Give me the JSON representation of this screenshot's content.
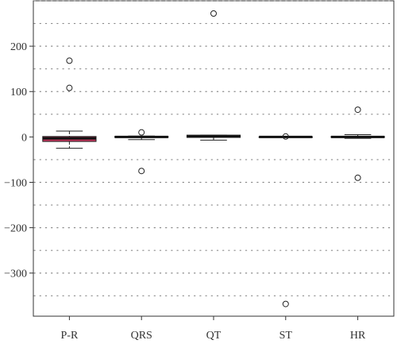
{
  "chart_data": {
    "type": "box",
    "title": "",
    "xlabel": "",
    "ylabel": "",
    "ylim": [
      -395,
      300
    ],
    "yticks": [
      -300,
      -200,
      -100,
      0,
      100,
      200
    ],
    "grid": true,
    "grid_step": 50,
    "legend": "none",
    "categories": [
      "P-R",
      "QRS",
      "QT",
      "ST",
      "HR"
    ],
    "boxes": [
      {
        "name": "P-R",
        "whisker_low": -25,
        "q1": -10,
        "median": -3,
        "q3": 1,
        "whisker_high": 13,
        "outliers": [
          168,
          108
        ],
        "color": "#c0345a"
      },
      {
        "name": "QRS",
        "whisker_low": -6,
        "q1": -1,
        "median": 0,
        "q3": 1,
        "whisker_high": 2,
        "outliers": [
          10,
          -75
        ],
        "color": "#c0345a"
      },
      {
        "name": "QT",
        "whisker_low": -7,
        "q1": -1,
        "median": 1,
        "q3": 4,
        "whisker_high": 4,
        "outliers": [
          272
        ],
        "color": "#c0345a"
      },
      {
        "name": "ST",
        "whisker_low": 0,
        "q1": 0,
        "median": 0,
        "q3": 0,
        "whisker_high": 0,
        "outliers": [
          1,
          -368
        ],
        "color": "#c0345a"
      },
      {
        "name": "HR",
        "whisker_low": -3,
        "q1": -1,
        "median": 0,
        "q3": 1,
        "whisker_high": 5,
        "outliers": [
          60,
          -90
        ],
        "color": "#c0345a"
      }
    ]
  }
}
